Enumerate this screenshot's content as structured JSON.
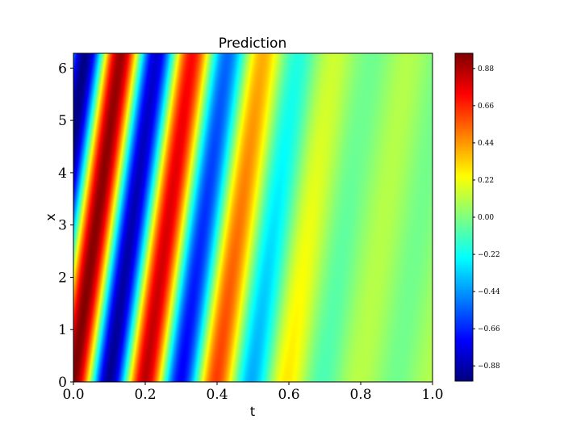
{
  "chart_data": {
    "type": "heatmap",
    "title": "Prediction",
    "xlabel": "t",
    "ylabel": "x",
    "xlim": [
      0.0,
      1.0
    ],
    "ylim": [
      0,
      6.283
    ],
    "x_ticks": [
      0.0,
      0.2,
      0.4,
      0.6,
      0.8,
      1.0
    ],
    "x_tick_labels": [
      "0.0",
      "0.2",
      "0.4",
      "0.6",
      "0.8",
      "1.0"
    ],
    "y_ticks": [
      0,
      1,
      2,
      3,
      4,
      5,
      6
    ],
    "y_tick_labels": [
      "0",
      "1",
      "2",
      "3",
      "4",
      "5",
      "6"
    ],
    "colormap": "jet",
    "colorbar": {
      "vmin": -0.97,
      "vmax": 0.97,
      "ticks": [
        -0.88,
        -0.66,
        -0.44,
        -0.22,
        0.0,
        0.22,
        0.44,
        0.66,
        0.88
      ],
      "tick_labels": [
        "−0.88",
        "−0.66",
        "−0.44",
        "−0.22",
        "0.00",
        "0.22",
        "0.44",
        "0.66",
        "0.88"
      ]
    },
    "field": {
      "description_formula": "u(t,x) = A(t) * cos(2*pi*(t - c*x)/lambda)",
      "wavelength": 0.2,
      "slant_c": 0.0212,
      "amplitude_t": [
        0.0,
        0.1,
        0.2,
        0.3,
        0.4,
        0.5,
        0.6,
        0.7,
        0.8,
        1.0
      ],
      "amplitude_v": [
        0.97,
        0.94,
        0.85,
        0.75,
        0.6,
        0.42,
        0.25,
        0.13,
        0.07,
        0.06
      ],
      "offset_v": 0.04
    }
  }
}
